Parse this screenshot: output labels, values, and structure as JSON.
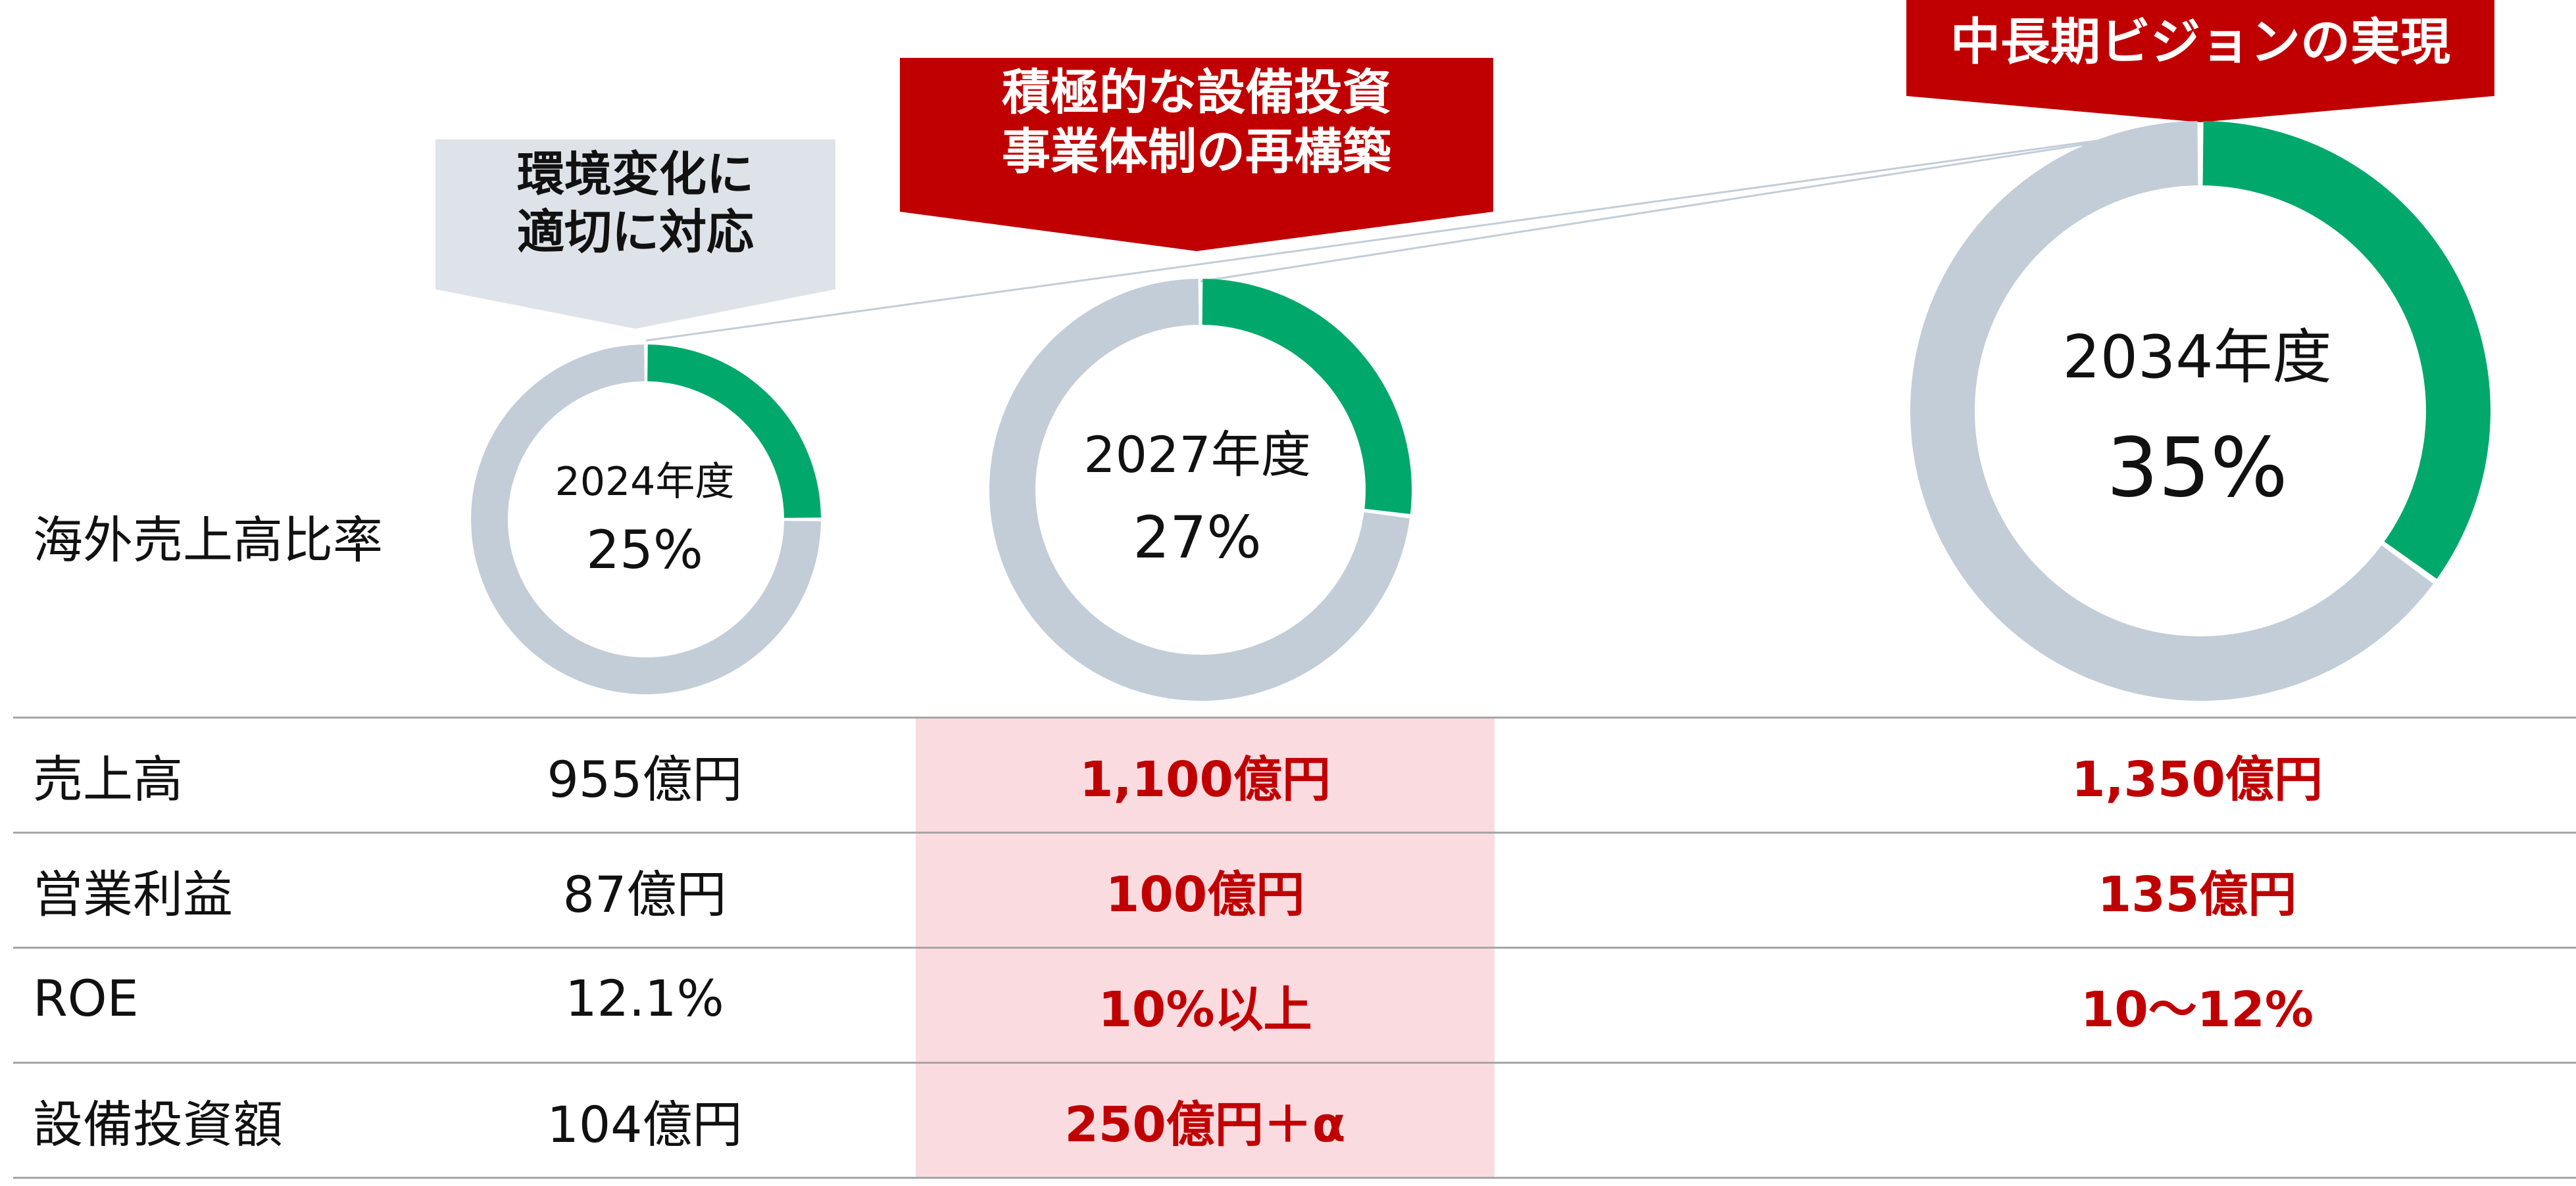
{
  "row_header_ratio": "海外売上高比率",
  "phases": [
    {
      "text_line1": "環境変化に",
      "text_line2": "適切に対応"
    },
    {
      "text_line1": "積極的な設備投資",
      "text_line2": "事業体制の再構築"
    },
    {
      "text_line1": "中長期ビジョンの実現"
    }
  ],
  "colors": {
    "accent": "#00a86b",
    "remainder": "#c3cdd8",
    "highlight_text": "#c00000",
    "highlight_bg": "#fadbe0",
    "phase1_bg": "#dde3e8",
    "phase_red": "#c00000"
  },
  "chart_data": {
    "type": "pie",
    "donuts": [
      {
        "year_label": "2024年度",
        "percent_label": "25%",
        "value": 25
      },
      {
        "year_label": "2027年度",
        "percent_label": "27%",
        "value": 27
      },
      {
        "year_label": "2034年度",
        "percent_label": "35%",
        "value": 35
      }
    ]
  },
  "table": {
    "rows": [
      {
        "label": "売上高",
        "values": [
          "955億円",
          "1,100億円",
          "1,350億円"
        ]
      },
      {
        "label": "営業利益",
        "values": [
          "87億円",
          "100億円",
          "135億円"
        ]
      },
      {
        "label": "ROE",
        "values": [
          "12.1%",
          "10%以上",
          "10～12%"
        ]
      },
      {
        "label": "設備投資額",
        "values": [
          "104億円",
          "250億円＋α",
          ""
        ]
      }
    ]
  }
}
